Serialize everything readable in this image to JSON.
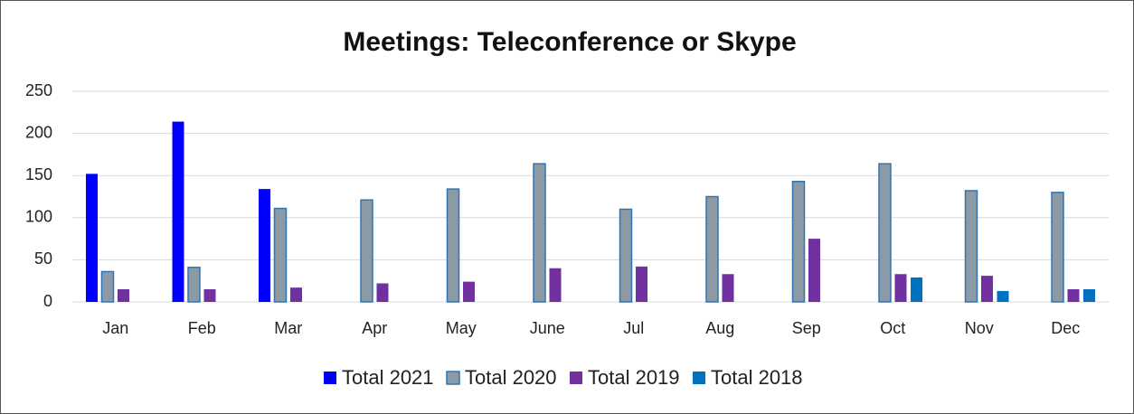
{
  "chart_data": {
    "type": "bar",
    "title": "Meetings: Teleconference or Skype",
    "categories": [
      "Jan",
      "Feb",
      "Mar",
      "Apr",
      "May",
      "June",
      "Jul",
      "Aug",
      "Sep",
      "Oct",
      "Nov",
      "Dec"
    ],
    "series": [
      {
        "name": "Total 2021",
        "color": "#0000ff",
        "values": [
          152,
          214,
          134,
          null,
          null,
          null,
          null,
          null,
          null,
          null,
          null,
          null
        ]
      },
      {
        "name": "Total 2020",
        "color": "#8c9aa6",
        "edgecolor": "#2e75b6",
        "values": [
          36,
          41,
          111,
          121,
          134,
          164,
          110,
          125,
          143,
          164,
          132,
          130
        ]
      },
      {
        "name": "Total 2019",
        "color": "#7030a0",
        "values": [
          15,
          15,
          17,
          22,
          24,
          40,
          42,
          33,
          75,
          33,
          31,
          15
        ]
      },
      {
        "name": "Total 2018",
        "color": "#0070c0",
        "values": [
          null,
          null,
          null,
          null,
          null,
          null,
          null,
          null,
          null,
          29,
          13,
          15
        ]
      }
    ],
    "ylim": [
      0,
      250
    ],
    "yticks": [
      0,
      50,
      100,
      150,
      200,
      250
    ],
    "grid": true,
    "legend": "bottom"
  }
}
